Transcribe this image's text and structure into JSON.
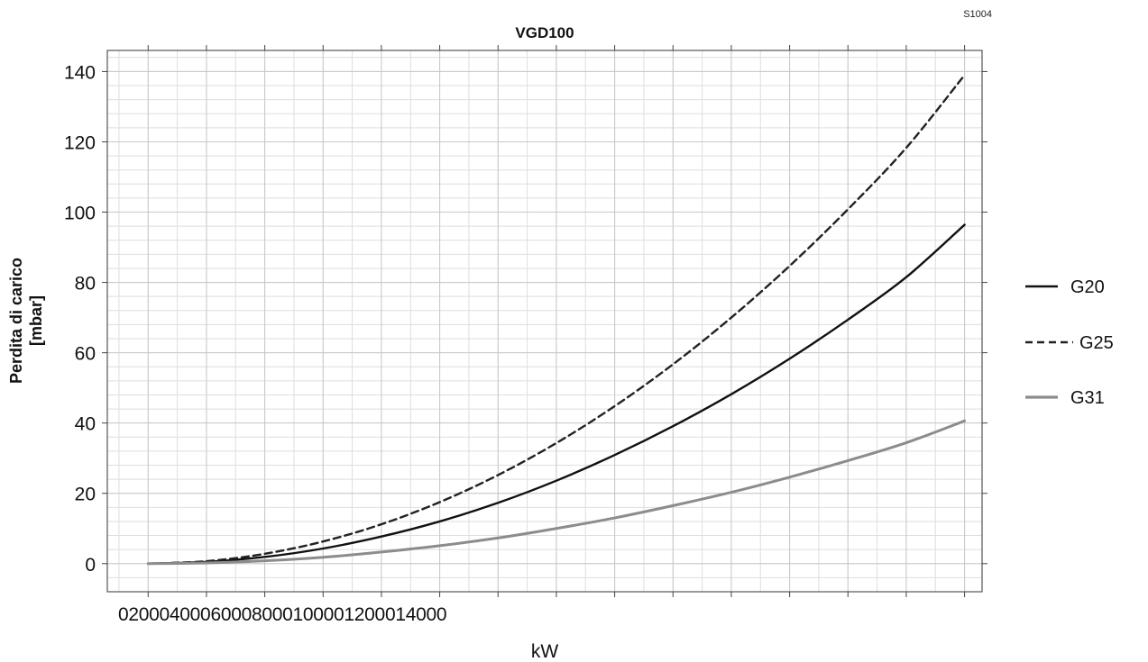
{
  "code": "S1004",
  "chart_data": {
    "type": "line",
    "title": "VGD100",
    "xlabel": "kW",
    "ylabel_lines": [
      "Perdita di carico",
      "[mbar]"
    ],
    "x_tick_labels": [
      "0",
      "2000",
      "4000",
      "6000",
      "8000",
      "10000",
      "12000",
      "14000"
    ],
    "xlim": [
      -700,
      14300
    ],
    "ylim": [
      -8,
      146
    ],
    "y_ticks": [
      0,
      20,
      40,
      60,
      80,
      100,
      120,
      140
    ],
    "grid": true,
    "legend_position": "right",
    "series": [
      {
        "name": "G20",
        "color": "#111111",
        "dash": "solid",
        "points": [
          [
            0,
            0
          ],
          [
            1000,
            0.5
          ],
          [
            2000,
            1.9
          ],
          [
            3000,
            4.3
          ],
          [
            4000,
            7.7
          ],
          [
            5000,
            12.0
          ],
          [
            6000,
            17.3
          ],
          [
            7000,
            23.6
          ],
          [
            8000,
            30.9
          ],
          [
            9000,
            39.1
          ],
          [
            10000,
            48.2
          ],
          [
            11000,
            58.3
          ],
          [
            12000,
            69.4
          ],
          [
            13000,
            81.5
          ],
          [
            14000,
            96.4
          ]
        ]
      },
      {
        "name": "G25",
        "color": "#222222",
        "dash": "dashed",
        "points": [
          [
            0,
            0
          ],
          [
            1000,
            0.7
          ],
          [
            2000,
            2.8
          ],
          [
            3000,
            6.3
          ],
          [
            4000,
            11.2
          ],
          [
            5000,
            17.5
          ],
          [
            6000,
            25.2
          ],
          [
            7000,
            34.3
          ],
          [
            8000,
            44.8
          ],
          [
            9000,
            56.7
          ],
          [
            10000,
            70.0
          ],
          [
            11000,
            84.7
          ],
          [
            12000,
            100.8
          ],
          [
            13000,
            118.3
          ],
          [
            14000,
            139.0
          ]
        ]
      },
      {
        "name": "G31",
        "color": "#8c8c8c",
        "dash": "solid",
        "points": [
          [
            0,
            0
          ],
          [
            1000,
            0.2
          ],
          [
            2000,
            0.8
          ],
          [
            3000,
            1.8
          ],
          [
            4000,
            3.3
          ],
          [
            5000,
            5.1
          ],
          [
            6000,
            7.3
          ],
          [
            7000,
            10.0
          ],
          [
            8000,
            13.0
          ],
          [
            9000,
            16.5
          ],
          [
            10000,
            20.3
          ],
          [
            11000,
            24.6
          ],
          [
            12000,
            29.3
          ],
          [
            13000,
            34.4
          ],
          [
            14000,
            40.6
          ]
        ]
      }
    ]
  }
}
